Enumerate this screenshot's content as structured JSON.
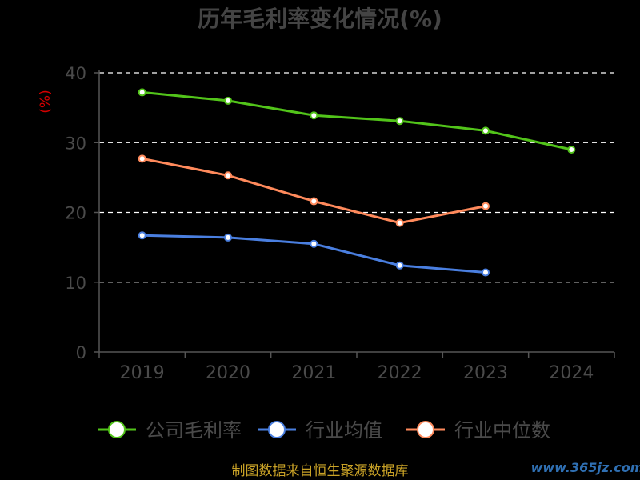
{
  "chart_data": {
    "type": "line",
    "title": "历年毛利率变化情况(%)",
    "unit_label": "(%)",
    "categories": [
      "2019",
      "2020",
      "2021",
      "2022",
      "2023",
      "2024"
    ],
    "yticks": [
      "0",
      "10",
      "20",
      "30",
      "40"
    ],
    "ylim": [
      0,
      40
    ],
    "grid": true,
    "legend_position": "bottom",
    "series": [
      {
        "name": "公司毛利率",
        "color": "#52c41a",
        "values": [
          37.2,
          36.0,
          33.9,
          33.1,
          31.7,
          29.0
        ]
      },
      {
        "name": "行业均值",
        "color": "#4a7fe0",
        "values": [
          16.7,
          16.4,
          15.5,
          12.4,
          11.4,
          null
        ]
      },
      {
        "name": "行业中位数",
        "color": "#ff8a5c",
        "values": [
          27.7,
          25.3,
          21.6,
          18.5,
          20.9,
          null
        ]
      }
    ]
  },
  "footer": {
    "source": "制图数据来自恒生聚源数据库",
    "watermark": "www.365jz.com"
  }
}
